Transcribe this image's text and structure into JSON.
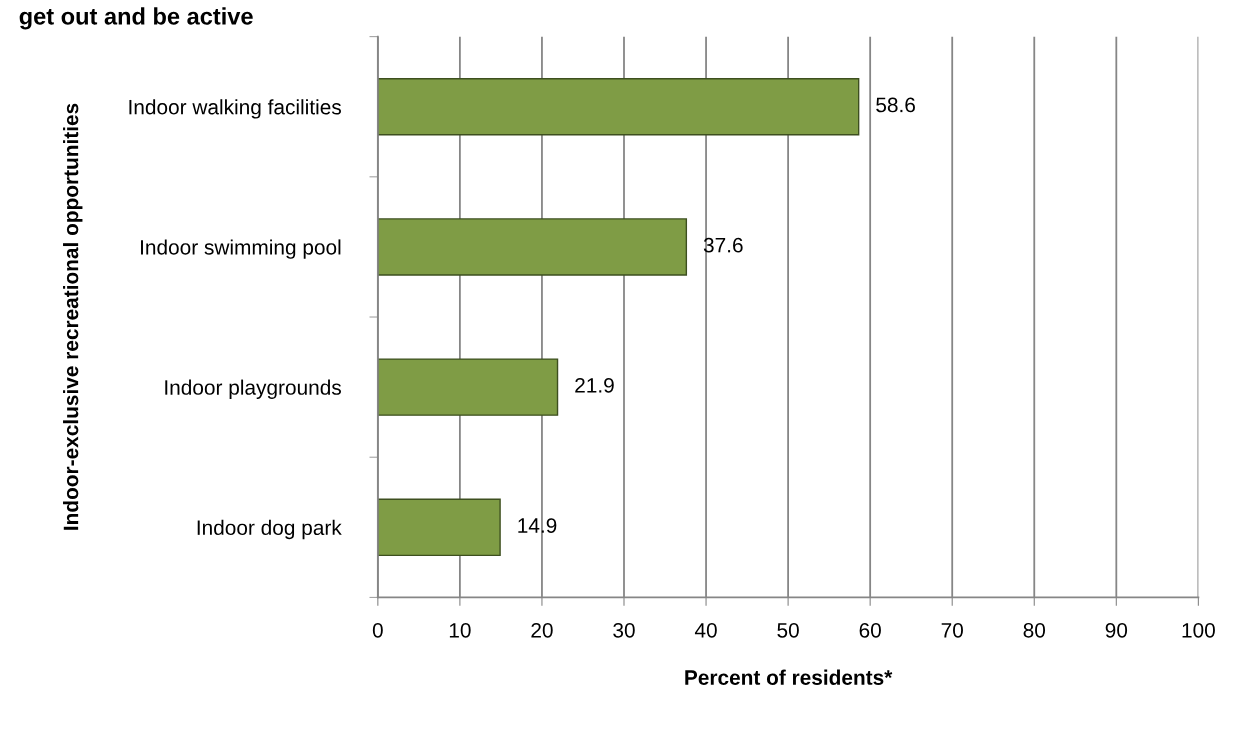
{
  "chart_data": {
    "type": "bar",
    "orientation": "horizontal",
    "title": "get out and be active",
    "categories": [
      "Indoor walking facilities",
      "Indoor swimming pool",
      "Indoor playgrounds",
      "Indoor dog park"
    ],
    "values": [
      58.6,
      37.6,
      21.9,
      14.9
    ],
    "color": "#7f9c45",
    "xlim": [
      0,
      100
    ],
    "xticks": [
      0,
      10,
      20,
      30,
      40,
      50,
      60,
      70,
      80,
      90,
      100
    ],
    "xlabel": "Percent of residents*",
    "ylabel": "Indoor-exclusive recreational opportunities",
    "grid": "x",
    "data_labels": true
  }
}
